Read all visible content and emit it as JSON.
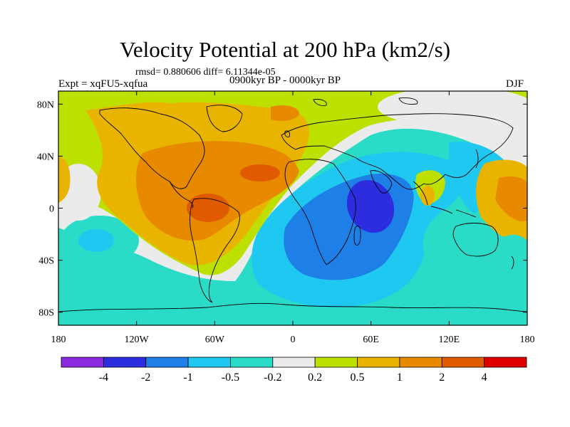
{
  "figure": {
    "title": "Velocity Potential at 200 hPa (km2/s)",
    "stats": "rmsd= 0.880606 diff= 6.11344e-05",
    "expt": "Expt = xqFU5-xqfua",
    "period": "0900kyr BP - 0000kyr BP",
    "season": "DJF"
  },
  "axes": {
    "lat_ticks": [
      {
        "value": 80,
        "label": "80N"
      },
      {
        "value": 40,
        "label": "40N"
      },
      {
        "value": 0,
        "label": "0"
      },
      {
        "value": -40,
        "label": "40S"
      },
      {
        "value": -80,
        "label": "80S"
      }
    ],
    "lon_ticks": [
      {
        "value": -180,
        "label": "180"
      },
      {
        "value": -120,
        "label": "120W"
      },
      {
        "value": -60,
        "label": "60W"
      },
      {
        "value": 0,
        "label": "0"
      },
      {
        "value": 60,
        "label": "60E"
      },
      {
        "value": 120,
        "label": "120E"
      },
      {
        "value": 180,
        "label": "180"
      }
    ],
    "lon_range": [
      -180,
      180
    ],
    "lat_range": [
      -90,
      90
    ]
  },
  "colorbar": {
    "colors": [
      "#8a2be2",
      "#2d2de0",
      "#1e7fe6",
      "#1ec8f0",
      "#2adcc8",
      "#ebebeb",
      "#bee000",
      "#e8b400",
      "#e88a00",
      "#e05a00",
      "#e00000"
    ],
    "labels": [
      "-4",
      "-2",
      "-1",
      "-0.5",
      "-0.2",
      "0.2",
      "0.5",
      "1",
      "2",
      "4"
    ]
  },
  "field_colors": {
    "neg4": "#2d2de0",
    "neg2": "#1e7fe6",
    "neg1": "#1ec8f0",
    "neg05": "#2adcc8",
    "neutral": "#ebebeb",
    "pos02": "#bee000",
    "pos05": "#e8b400",
    "pos1": "#e88a00",
    "pos2": "#e05a00",
    "pos4": "#e00000"
  }
}
